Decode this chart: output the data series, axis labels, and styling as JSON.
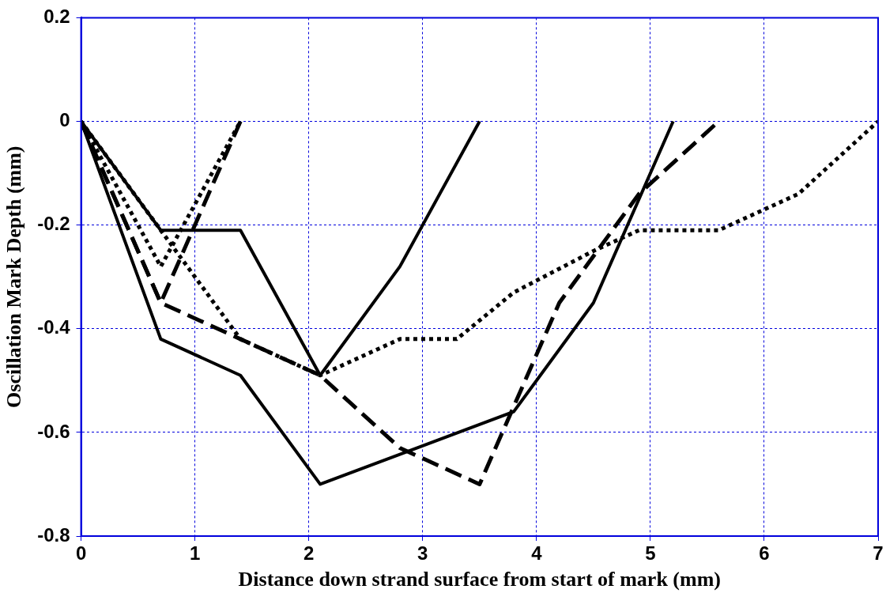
{
  "chart_data": {
    "type": "line",
    "xlabel": "Distance down strand surface from start of mark (mm)",
    "ylabel": "Oscillation Mark Depth (mm)",
    "xlim": [
      0,
      7
    ],
    "xticks": [
      0,
      1,
      2,
      3,
      4,
      5,
      6,
      7
    ],
    "ylim": [
      -0.8,
      0.2
    ],
    "yticks": [
      -0.8,
      -0.6,
      -0.4,
      -0.2,
      0,
      0.2
    ],
    "grid": true,
    "legend": false,
    "marker": "none",
    "series": [
      {
        "color": "#000000",
        "line_style": "solid",
        "x": [
          0,
          0.7,
          1.4,
          2.1,
          2.8,
          3.5
        ],
        "values": [
          0,
          -0.21,
          -0.21,
          -0.49,
          -0.28,
          0
        ]
      },
      {
        "color": "#000000",
        "line_style": "solid",
        "x": [
          0,
          0.7,
          1.4,
          2.1,
          3.8,
          4.5,
          5.2
        ],
        "values": [
          0,
          -0.42,
          -0.49,
          -0.7,
          -0.56,
          -0.35,
          0
        ]
      },
      {
        "color": "#000000",
        "line_style": "dotted",
        "x": [
          0,
          0.7,
          1.4
        ],
        "values": [
          0,
          -0.28,
          0
        ]
      },
      {
        "color": "#000000",
        "line_style": "dashed",
        "x": [
          0,
          0.7,
          1.4
        ],
        "values": [
          0,
          -0.35,
          0
        ]
      },
      {
        "color": "#000000",
        "line_style": "dashed",
        "x": [
          0,
          0.7,
          1.4,
          2.1,
          2.8,
          3.5,
          4.2,
          4.9,
          5.6
        ],
        "values": [
          0,
          -0.35,
          -0.42,
          -0.49,
          -0.63,
          -0.7,
          -0.35,
          -0.14,
          0
        ]
      },
      {
        "color": "#000000",
        "line_style": "dotted",
        "x": [
          0,
          0.7,
          1.4,
          2.1,
          2.8,
          3.3,
          3.8,
          4.5,
          4.9,
          5.6,
          6.3,
          7
        ],
        "values": [
          0,
          -0.21,
          -0.42,
          -0.49,
          -0.42,
          -0.42,
          -0.33,
          -0.25,
          -0.21,
          -0.21,
          -0.14,
          0
        ]
      }
    ]
  }
}
